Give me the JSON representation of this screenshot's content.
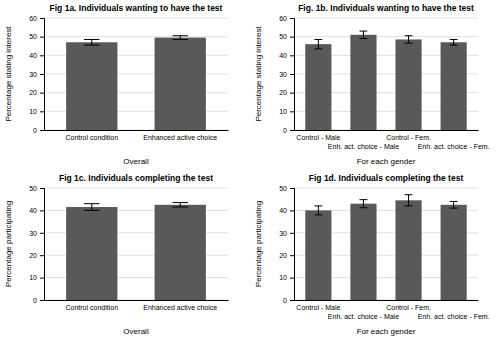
{
  "chart_data": [
    {
      "type": "bar",
      "title": "Fig 1a. Individuals wanting to have the test",
      "categories": [
        "Control condition",
        "Enhanced active choice"
      ],
      "values": [
        47.0,
        49.5
      ],
      "errors": [
        1.5,
        1.0
      ],
      "x_label": "Overall",
      "y_label": "Percentage stating interest",
      "color": "#595959",
      "ylim": [
        0,
        60
      ],
      "yticks": [
        0,
        10,
        20,
        30,
        40,
        50,
        60
      ],
      "grid": true
    },
    {
      "type": "bar",
      "title": "Fig. 1b. Individuals wanting to have the test",
      "categories": [
        "Control - Male",
        "Enh. act. choice - Male",
        "Control - Fem.",
        "Enh. act. choice - Fem."
      ],
      "values": [
        46.0,
        51.0,
        48.5,
        47.0
      ],
      "errors": [
        2.5,
        2.0,
        2.0,
        1.5
      ],
      "x_label": "For each gender",
      "y_label": "Percentage stating interest",
      "color": "#595959",
      "ylim": [
        0,
        60
      ],
      "yticks": [
        0,
        10,
        20,
        30,
        40,
        50,
        60
      ],
      "grid": true
    },
    {
      "type": "bar",
      "title": "Fig 1c. Individuals completing the test",
      "categories": [
        "Control condition",
        "Enhanced active choice"
      ],
      "values": [
        41.5,
        42.5
      ],
      "errors": [
        1.5,
        1.0
      ],
      "x_label": "Overall",
      "y_label": "Percentage participating",
      "color": "#595959",
      "ylim": [
        0,
        50
      ],
      "yticks": [
        0,
        10,
        20,
        30,
        40,
        50
      ],
      "grid": true
    },
    {
      "type": "bar",
      "title": "Fig 1d. Individuals completing the test",
      "categories": [
        "Control - Male",
        "Enh. act. choice - Male",
        "Control - Fem.",
        "Enh. act. choice - Fem."
      ],
      "values": [
        40.0,
        43.0,
        44.5,
        42.5
      ],
      "errors": [
        2.0,
        1.8,
        2.5,
        1.5
      ],
      "x_label": "For each gender",
      "y_label": "Percentage participating",
      "color": "#595959",
      "ylim": [
        0,
        50
      ],
      "yticks": [
        0,
        10,
        20,
        30,
        40,
        50
      ],
      "grid": true
    }
  ]
}
